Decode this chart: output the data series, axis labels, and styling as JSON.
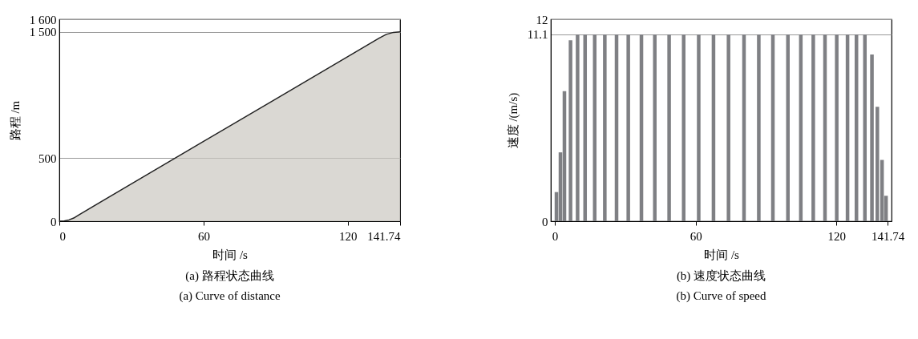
{
  "chart_data": [
    {
      "type": "area",
      "title": "(a) 路程状态曲线",
      "subtitle": "(a) Curve of distance",
      "xlabel": "时间 /s",
      "ylabel": "路程 /m",
      "x": [
        0,
        2,
        4,
        6,
        8,
        30,
        60,
        90,
        120,
        133,
        136,
        139,
        141.74
      ],
      "series": [
        {
          "color": "#cbc8c0",
          "values": [
            0,
            2,
            10,
            25,
            49,
            296,
            632,
            968,
            1304,
            1450,
            1480,
            1496,
            1500
          ]
        }
      ],
      "xlim": [
        0,
        141.74
      ],
      "xticks": [
        0,
        60,
        120,
        141.74
      ],
      "ylim": [
        0,
        1600
      ],
      "yticks": [
        0,
        {
          "value": 500,
          "label": "500"
        },
        {
          "value": 1500,
          "label": "1 500"
        },
        {
          "value": 1600,
          "label": "1 600"
        }
      ],
      "grid": "y"
    },
    {
      "type": "bar",
      "title": "(b) 速度状态曲线",
      "subtitle": "(b) Curve of speed",
      "xlabel": "时间 /s",
      "ylabel": "速度 /(m/s)",
      "x": [
        0.7,
        2.4,
        4.1,
        6.7,
        9.7,
        12.9,
        17.0,
        21.3,
        26.3,
        31.3,
        36.9,
        42.6,
        48.7,
        54.9,
        61.3,
        67.6,
        74.0,
        80.6,
        86.9,
        92.9,
        99.3,
        104.8,
        110.1,
        115.1,
        120.1,
        124.7,
        128.5,
        132.1,
        135.1,
        137.4,
        139.4,
        141.1
      ],
      "series": [
        {
          "color": "#7f8084",
          "values": [
            1.73,
            4.09,
            7.73,
            10.75,
            11.1,
            11.1,
            11.1,
            11.1,
            11.1,
            11.1,
            11.1,
            11.1,
            11.1,
            11.1,
            11.1,
            11.1,
            11.1,
            11.1,
            11.1,
            11.1,
            11.1,
            11.1,
            11.1,
            11.1,
            11.1,
            11.1,
            11.1,
            11.1,
            9.91,
            6.8,
            3.64,
            1.51
          ]
        }
      ],
      "xlim": [
        0,
        141.74
      ],
      "xticks": [
        0,
        60,
        120,
        141.74
      ],
      "ylim": [
        0,
        12
      ],
      "yticks": [
        0,
        11.1,
        12
      ],
      "grid": "y"
    }
  ]
}
